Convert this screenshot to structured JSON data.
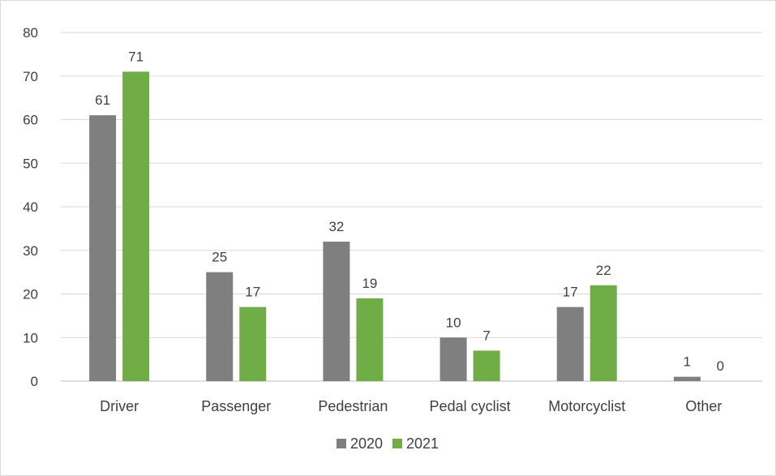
{
  "chart_data": {
    "type": "bar",
    "categories": [
      "Driver",
      "Passenger",
      "Pedestrian",
      "Pedal cyclist",
      "Motorcyclist",
      "Other"
    ],
    "series": [
      {
        "name": "2020",
        "values": [
          61,
          25,
          32,
          10,
          17,
          1
        ],
        "color": "#7f7f7f"
      },
      {
        "name": "2021",
        "values": [
          71,
          17,
          19,
          7,
          22,
          0
        ],
        "color": "#70ad47"
      }
    ],
    "title": "",
    "xlabel": "",
    "ylabel": "",
    "ylim": [
      0,
      80
    ],
    "yticks": [
      0,
      10,
      20,
      30,
      40,
      50,
      60,
      70,
      80
    ],
    "grid": true,
    "legend": "bottom",
    "data_labels": true
  }
}
